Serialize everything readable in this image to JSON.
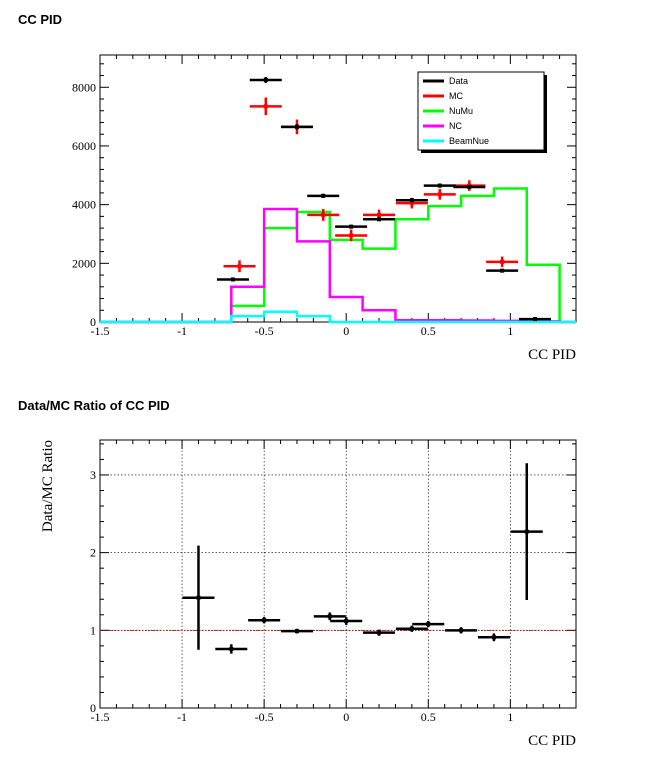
{
  "chart_data": [
    {
      "type": "histogram",
      "title": "CC PID",
      "xlabel": "CC PID",
      "ylabel": "",
      "xlim": [
        -1.5,
        1.4
      ],
      "ylim": [
        0,
        9100
      ],
      "x_ticks": [
        -1.5,
        -1,
        -0.5,
        0,
        0.5,
        1
      ],
      "x_tick_labels": [
        "-1.5",
        "-1",
        "-0.5",
        "0",
        "0.5",
        "1"
      ],
      "y_ticks": [
        0,
        2000,
        4000,
        6000,
        8000
      ],
      "y_tick_labels": [
        "0",
        "2000",
        "4000",
        "6000",
        "8000"
      ],
      "bin_edges": [
        -1.5,
        -1.3,
        -1.1,
        -0.9,
        -0.7,
        -0.5,
        -0.3,
        -0.1,
        0.1,
        0.3,
        0.5,
        0.7,
        0.9,
        1.1,
        1.3,
        1.4
      ],
      "legend": [
        {
          "label": "Data",
          "color": "#000000"
        },
        {
          "label": "MC",
          "color": "#ff0000"
        },
        {
          "label": "NuMu",
          "color": "#00ff00"
        },
        {
          "label": "NC",
          "color": "#ff00ff"
        },
        {
          "label": "BeamNue",
          "color": "#00ffff"
        }
      ],
      "legend_position": "top-right",
      "series": [
        {
          "name": "NuMu",
          "kind": "hist",
          "color": "#00ff00",
          "values": [
            0,
            0,
            0,
            0,
            550,
            3200,
            3750,
            2800,
            2500,
            3500,
            3950,
            4300,
            4550,
            1950,
            0
          ]
        },
        {
          "name": "NC",
          "kind": "hist",
          "color": "#ff00ff",
          "values": [
            0,
            0,
            0,
            0,
            1200,
            3850,
            2750,
            850,
            400,
            60,
            60,
            50,
            40,
            20,
            0
          ]
        },
        {
          "name": "BeamNue",
          "kind": "hist",
          "color": "#00ffff",
          "values": [
            0,
            0,
            0,
            0,
            200,
            350,
            200,
            0,
            0,
            0,
            0,
            0,
            0,
            0,
            0
          ]
        },
        {
          "name": "MC",
          "kind": "points",
          "color": "#ff0000",
          "x": [
            -0.65,
            -0.49,
            -0.3,
            -0.14,
            0.03,
            0.2,
            0.4,
            0.57,
            0.75,
            0.95
          ],
          "values": [
            1900,
            7350,
            6650,
            3650,
            2950,
            3650,
            4050,
            4350,
            4650,
            2050
          ],
          "errors": [
            200,
            300,
            250,
            200,
            200,
            180,
            180,
            180,
            180,
            180
          ]
        },
        {
          "name": "Data",
          "kind": "points",
          "color": "#000000",
          "x": [
            -0.69,
            -0.49,
            -0.3,
            -0.14,
            0.03,
            0.2,
            0.4,
            0.57,
            0.75,
            0.95,
            1.15
          ],
          "values": [
            1450,
            8250,
            6650,
            4300,
            3250,
            3500,
            4150,
            4650,
            4600,
            1750,
            100
          ],
          "errors": [
            60,
            100,
            90,
            70,
            60,
            60,
            70,
            70,
            70,
            50,
            15
          ]
        }
      ]
    },
    {
      "type": "scatter",
      "title": "Data/MC Ratio of CC PID",
      "xlabel": "CC PID",
      "ylabel": "Data/MC Ratio",
      "xlim": [
        -1.5,
        1.4
      ],
      "ylim": [
        0,
        3.45
      ],
      "x_ticks": [
        -1.5,
        -1,
        -0.5,
        0,
        0.5,
        1
      ],
      "x_tick_labels": [
        "-1.5",
        "-1",
        "-0.5",
        "0",
        "0.5",
        "1"
      ],
      "y_ticks": [
        0,
        1,
        2,
        3
      ],
      "y_tick_labels": [
        "0",
        "1",
        "2",
        "3"
      ],
      "grid": true,
      "reference_line": 1,
      "series": [
        {
          "name": "Data/MC",
          "color": "#000000",
          "x": [
            -0.9,
            -0.7,
            -0.5,
            -0.3,
            -0.1,
            0.0,
            0.2,
            0.4,
            0.5,
            0.7,
            0.9,
            1.1
          ],
          "values": [
            1.42,
            0.76,
            1.13,
            0.99,
            1.18,
            1.12,
            0.97,
            1.02,
            1.08,
            1.0,
            0.91,
            2.27
          ],
          "errors": [
            0.67,
            0.06,
            0.04,
            0.03,
            0.05,
            0.05,
            0.04,
            0.04,
            0.04,
            0.04,
            0.05,
            0.88
          ]
        }
      ]
    }
  ]
}
